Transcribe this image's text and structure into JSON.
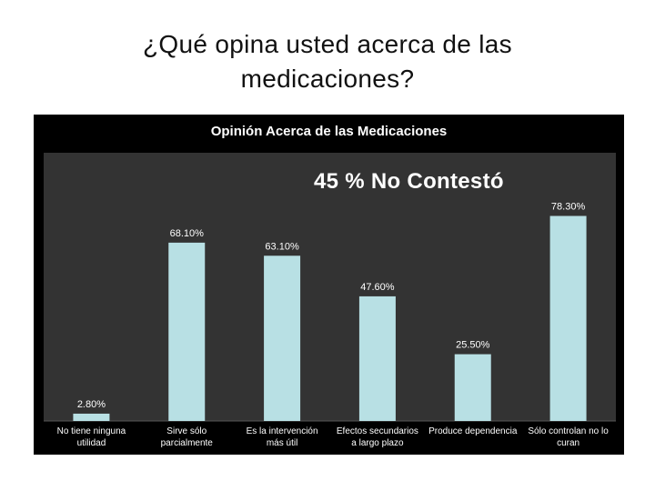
{
  "slide": {
    "title_line1": "¿Qué opina usted acerca de las",
    "title_line2": "medicaciones?"
  },
  "chart_data": {
    "type": "bar",
    "title": "Opinión Acerca de las Medicaciones",
    "annotation": "45 % No Contestó",
    "categories": [
      [
        "No tiene ninguna",
        "utilidad"
      ],
      [
        "Sirve sólo",
        "parcialmente"
      ],
      [
        "Es la intervención",
        "más útil"
      ],
      [
        "Efectos secundarios",
        "a largo plazo"
      ],
      [
        "Produce dependencia",
        ""
      ],
      [
        "Sólo controlan no lo",
        "curan"
      ]
    ],
    "values": [
      2.8,
      68.1,
      63.1,
      47.6,
      25.5,
      78.3
    ],
    "value_labels": [
      "2.80%",
      "68.10%",
      "63.10%",
      "47.60%",
      "25.50%",
      "78.30%"
    ],
    "ylim": [
      0,
      100
    ],
    "grid": false,
    "bar_color": "#b8e0e4",
    "plot_background": "#000000"
  }
}
